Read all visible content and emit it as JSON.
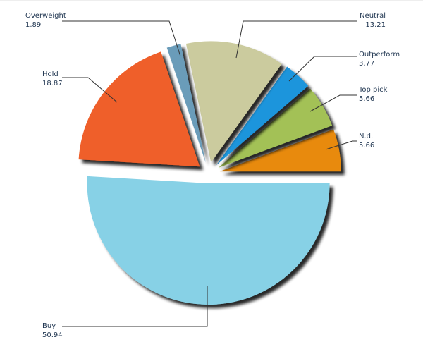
{
  "chart_data": {
    "type": "pie",
    "categories": [
      "N.d.",
      "Top pick",
      "Outperform",
      "Neutral",
      "Overweight",
      "Hold",
      "Buy"
    ],
    "values": [
      5.66,
      5.66,
      3.77,
      13.21,
      1.89,
      18.87,
      50.94
    ],
    "colors": [
      "#e88a0c",
      "#a3c157",
      "#1f95dc",
      "#cbcb9e",
      "#6b9cb9",
      "#ef5f29",
      "#87d1e6"
    ]
  }
}
